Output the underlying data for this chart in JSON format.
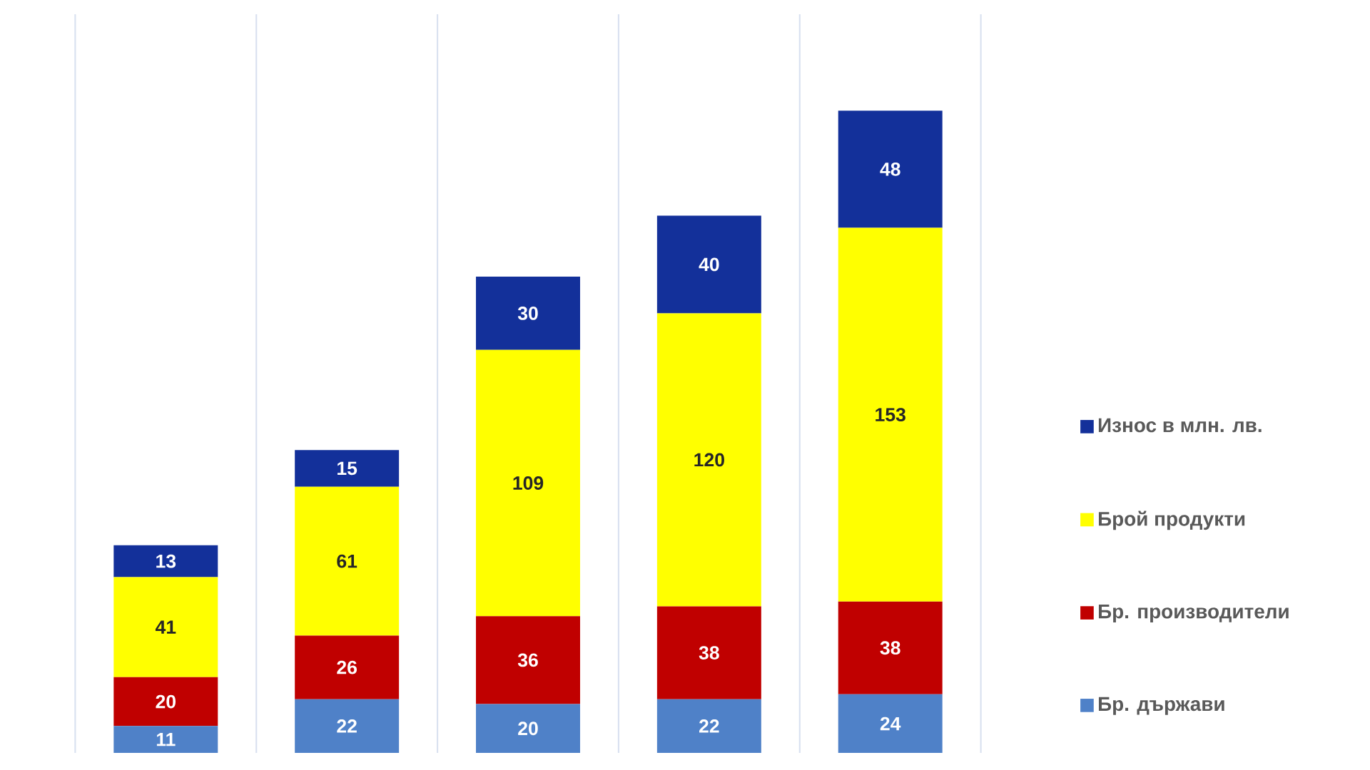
{
  "chart_data": {
    "type": "bar",
    "stacked": true,
    "categories": [
      null,
      null,
      null,
      null,
      null
    ],
    "series": [
      {
        "name": "Бр. държави",
        "color": "#4f81c8",
        "values": [
          11,
          22,
          20,
          22,
          24
        ]
      },
      {
        "name": "Бр. производители",
        "color": "#c00000",
        "values": [
          20,
          26,
          36,
          38,
          38
        ]
      },
      {
        "name": "Брой продукти",
        "color": "#ffff00",
        "values": [
          41,
          61,
          109,
          120,
          153
        ]
      },
      {
        "name": "Износ в млн. лв.",
        "color": "#13309a",
        "values": [
          13,
          15,
          30,
          40,
          48
        ]
      }
    ],
    "data_labels": true,
    "legend": "right",
    "grid": "x"
  }
}
